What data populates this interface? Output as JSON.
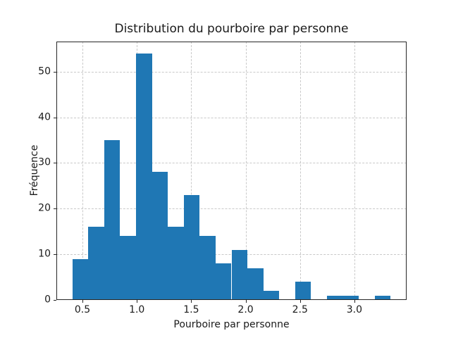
{
  "chart_data": {
    "type": "bar",
    "subtype": "histogram",
    "title": "Distribution du pourboire par personne",
    "xlabel": "Pourboire par personne",
    "ylabel": "Fréquence",
    "bin_edges": [
      0.407,
      0.553,
      0.7,
      0.846,
      0.992,
      1.139,
      1.285,
      1.431,
      1.578,
      1.724,
      1.87,
      2.017,
      2.163,
      2.309,
      2.456,
      2.602,
      2.748,
      2.895,
      3.041,
      3.187,
      3.334
    ],
    "counts": [
      9,
      16,
      35,
      14,
      54,
      28,
      16,
      23,
      14,
      8,
      11,
      7,
      2,
      0,
      4,
      0,
      1,
      1,
      0,
      1
    ],
    "xticks": [
      0.5,
      1.0,
      1.5,
      2.0,
      2.5,
      3.0
    ],
    "xtick_labels": [
      "0.5",
      "1.0",
      "1.5",
      "2.0",
      "2.5",
      "3.0"
    ],
    "yticks": [
      0,
      10,
      20,
      30,
      40,
      50
    ],
    "ytick_labels": [
      "0",
      "10",
      "20",
      "30",
      "40",
      "50"
    ],
    "xlim": [
      0.26,
      3.48
    ],
    "ylim": [
      0,
      56.6
    ],
    "grid": {
      "visible": true,
      "linestyle": "dashed",
      "color": "#c9c9c9"
    },
    "bar_color": "#1f77b4",
    "spine_color": "#262626",
    "text_color": "#1a1a1a",
    "background_color": "#ffffff",
    "legend": null
  }
}
